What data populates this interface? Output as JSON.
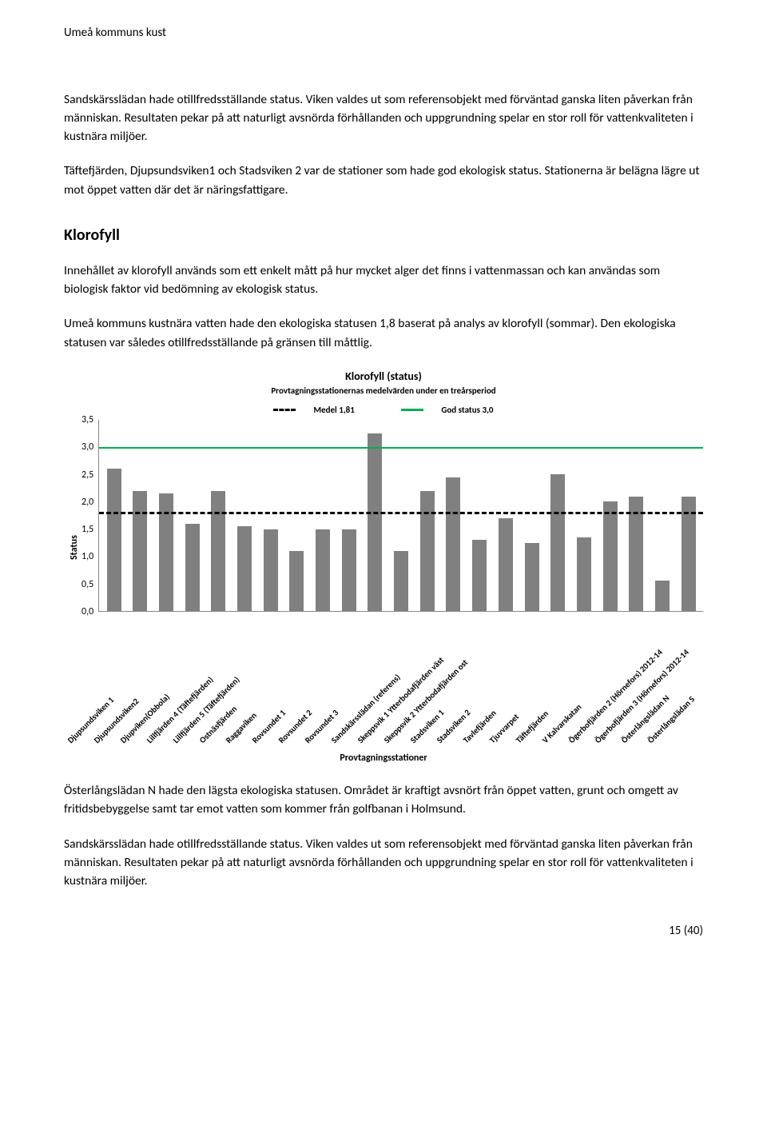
{
  "header": "Umeå kommuns kust",
  "para1": "Sandskärsslädan hade otillfredsställande status. Viken valdes ut som referensobjekt med förväntad ganska liten påverkan från människan. Resultaten pekar på att naturligt avsnörda förhållanden och uppgrundning spelar en stor roll för vattenkvaliteten i kustnära miljöer.",
  "para2": "Täftefjärden, Djupsundsviken1 och Stadsviken 2 var de stationer som hade god ekologisk status. Stationerna är belägna lägre ut mot öppet vatten där det är näringsfattigare.",
  "section_head": "Klorofyll",
  "para3": "Innehållet av klorofyll används som ett enkelt mått på hur mycket alger det finns i vattenmassan och kan användas som biologisk faktor vid bedömning av ekologisk status.",
  "para4": "Umeå kommuns kustnära vatten hade den ekologiska statusen 1,8 baserat på analys av klorofyll (sommar). Den ekologiska statusen var således otillfredsställande på gränsen till måttlig.",
  "chart": {
    "type": "bar",
    "title": "Klorofyll (status)",
    "subtitle": "Provtagningsstationernas medelvärden under en treårsperiod",
    "legend_medel": "Medel 1,81",
    "legend_god": "God status 3,0",
    "y_label": "Status",
    "ylim_max": 3.5,
    "ylim_min": 0.0,
    "y_ticks": [
      "3,5",
      "3,0",
      "2,5",
      "2,0",
      "1,5",
      "1,0",
      "0,5",
      "0,0"
    ],
    "ref_medel": 1.81,
    "ref_god": 3.0,
    "bar_color": "#808080",
    "good_line_color": "#00b050",
    "medel_line_color": "#000000",
    "x_axis_title": "Provtagningsstationer",
    "categories": [
      "Djupsundsviken 1",
      "Djupsundsviken2",
      "Djupviken(Obbola)",
      "Lillfjärden 4 (Täftefjärden)",
      "Lillfjärden 5 (Täftefjärden)",
      "Ostnäsfjärden",
      "Raggaviken",
      "Rovsundet 1",
      "Rovsundet 2",
      "Rovsundet 3",
      "Sandskärsslädan (referens)",
      "Skeppsvik 1 Ytterbodafjärden väst",
      "Skeppsvik 2 Ytterbodafjärden ost",
      "Stadsviken 1",
      "Stadsviken 2",
      "Tavlefjärden",
      "Tjuvvarpet",
      "Täftefjärden",
      "V Kalvarskatan",
      "Ögerbofjärden 2 (Hörnefors) 2012-14",
      "Ögerbofjärden 3 (Hörnefors) 2012-14",
      "Österlångslädan N",
      "Österlångslädan S"
    ],
    "values": [
      2.6,
      2.2,
      2.15,
      1.6,
      2.2,
      1.55,
      1.5,
      1.1,
      1.5,
      1.5,
      3.25,
      1.1,
      2.2,
      2.45,
      1.3,
      1.7,
      1.25,
      2.5,
      1.35,
      2.0,
      2.1,
      0.55,
      2.1
    ]
  },
  "para5": "Österlångslädan N hade den lägsta ekologiska statusen. Området är kraftigt avsnört från öppet vatten, grunt och omgett av fritidsbebyggelse samt tar emot vatten som kommer från golfbanan i Holmsund.",
  "para6": "Sandskärsslädan hade otillfredsställande status. Viken valdes ut som referensobjekt med förväntad ganska liten påverkan från människan. Resultaten pekar på att naturligt avsnörda förhållanden och uppgrundning spelar en stor roll för vattenkvaliteten i kustnära miljöer.",
  "page_num": "15 (40)"
}
